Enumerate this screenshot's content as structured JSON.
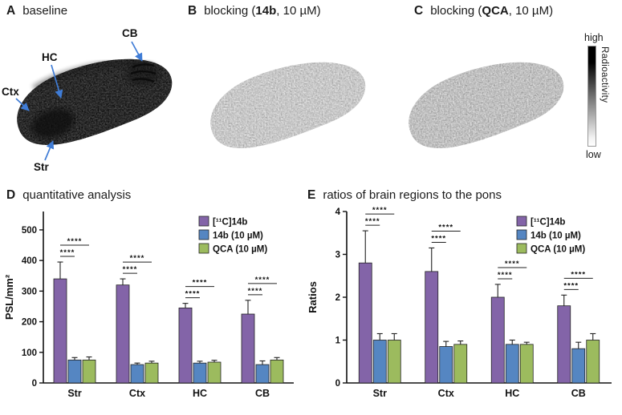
{
  "panels": {
    "A": {
      "letter": "A",
      "title": "baseline",
      "regions": [
        "Ctx",
        "HC",
        "CB",
        "Str"
      ]
    },
    "B": {
      "letter": "B",
      "title_prefix": "blocking (",
      "title_bold": "14b",
      "title_suffix": ", 10 µM)"
    },
    "C": {
      "letter": "C",
      "title_prefix": "blocking (",
      "title_bold": "QCA",
      "title_suffix": ", 10 µM)"
    },
    "D": {
      "letter": "D",
      "title": "quantitative analysis"
    },
    "E": {
      "letter": "E",
      "title": "ratios of brain regions to the pons"
    }
  },
  "colorbar": {
    "high_label": "high",
    "low_label": "low",
    "axis_label": "Radioactivity"
  },
  "chart_data": [
    {
      "id": "chart-d",
      "type": "bar",
      "title": "quantitative analysis",
      "categories": [
        "Str",
        "Ctx",
        "HC",
        "CB"
      ],
      "xlabel": "",
      "ylabel": "PSL/mm²",
      "ylim": [
        0,
        560
      ],
      "yticks": [
        0,
        100,
        200,
        300,
        400,
        500
      ],
      "legend_position": "top-right",
      "grid": false,
      "series": [
        {
          "name": "[¹¹C]14b",
          "color": "#8364a8",
          "values": [
            340,
            320,
            245,
            225
          ],
          "errors": [
            55,
            20,
            15,
            45
          ]
        },
        {
          "name": "14b (10 µM)",
          "color": "#5586c2",
          "values": [
            75,
            60,
            65,
            60
          ],
          "errors": [
            8,
            5,
            6,
            12
          ]
        },
        {
          "name": "QCA (10 µM)",
          "color": "#9cbb5e",
          "values": [
            75,
            65,
            68,
            75
          ],
          "errors": [
            10,
            6,
            6,
            8
          ]
        }
      ],
      "significance": {
        "label": "****",
        "comparisons": [
          [
            0,
            1
          ],
          [
            0,
            2
          ]
        ]
      }
    },
    {
      "id": "chart-e",
      "type": "bar",
      "title": "ratios of brain regions to the pons",
      "categories": [
        "Str",
        "Ctx",
        "HC",
        "CB"
      ],
      "xlabel": "",
      "ylabel": "Ratios",
      "ylim": [
        0,
        4
      ],
      "yticks": [
        0,
        1,
        2,
        3,
        4
      ],
      "legend_position": "top-right",
      "grid": false,
      "series": [
        {
          "name": "[¹¹C]14b",
          "color": "#8364a8",
          "values": [
            2.8,
            2.6,
            2.0,
            1.8
          ],
          "errors": [
            0.75,
            0.55,
            0.3,
            0.25
          ]
        },
        {
          "name": "14b (10 µM)",
          "color": "#5586c2",
          "values": [
            1.0,
            0.85,
            0.9,
            0.8
          ],
          "errors": [
            0.15,
            0.12,
            0.1,
            0.15
          ]
        },
        {
          "name": "QCA (10 µM)",
          "color": "#9cbb5e",
          "values": [
            1.0,
            0.9,
            0.9,
            1.0
          ],
          "errors": [
            0.15,
            0.08,
            0.05,
            0.15
          ]
        }
      ],
      "significance": {
        "label": "****",
        "comparisons": [
          [
            0,
            1
          ],
          [
            0,
            2
          ]
        ]
      }
    }
  ]
}
